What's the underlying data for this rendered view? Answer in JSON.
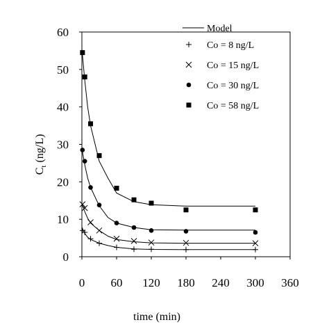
{
  "chart_data": {
    "type": "scatter",
    "xlabel": "time (min)",
    "ylabel_main": "C",
    "ylabel_sub": "t",
    "ylabel_unit": " (ng/L)",
    "xlim": [
      0,
      360
    ],
    "ylim": [
      0,
      60
    ],
    "x_ticks": [
      0,
      60,
      120,
      180,
      240,
      300,
      360
    ],
    "y_ticks": [
      0,
      10,
      20,
      30,
      40,
      50,
      60
    ],
    "grid": false,
    "legend_position": "top-right",
    "model_label": "Model",
    "series": [
      {
        "name": "Co = 8 ng/L",
        "marker": "plus",
        "points": [
          [
            1,
            7.0
          ],
          [
            5,
            6.5
          ],
          [
            15,
            4.8
          ],
          [
            30,
            3.6
          ],
          [
            60,
            2.5
          ],
          [
            90,
            2.0
          ],
          [
            120,
            2.0
          ],
          [
            180,
            1.9
          ],
          [
            300,
            1.9
          ]
        ],
        "model": [
          [
            0,
            7.8
          ],
          [
            5,
            6.2
          ],
          [
            10,
            5.2
          ],
          [
            15,
            4.6
          ],
          [
            30,
            3.6
          ],
          [
            45,
            3.0
          ],
          [
            60,
            2.5
          ],
          [
            90,
            2.1
          ],
          [
            120,
            1.95
          ],
          [
            180,
            1.9
          ],
          [
            300,
            1.9
          ]
        ]
      },
      {
        "name": "Co = 15 ng/L",
        "marker": "x",
        "points": [
          [
            1,
            14.0
          ],
          [
            5,
            13.0
          ],
          [
            15,
            9.2
          ],
          [
            30,
            7.0
          ],
          [
            60,
            4.8
          ],
          [
            90,
            4.2
          ],
          [
            120,
            3.8
          ],
          [
            180,
            3.7
          ],
          [
            300,
            3.6
          ]
        ],
        "model": [
          [
            0,
            14.2
          ],
          [
            5,
            12.0
          ],
          [
            10,
            10.3
          ],
          [
            15,
            9.0
          ],
          [
            30,
            7.0
          ],
          [
            45,
            5.5
          ],
          [
            60,
            4.6
          ],
          [
            90,
            4.0
          ],
          [
            120,
            3.7
          ],
          [
            180,
            3.6
          ],
          [
            300,
            3.6
          ]
        ]
      },
      {
        "name": "Co = 30 ng/L",
        "marker": "circle",
        "points": [
          [
            1,
            28.5
          ],
          [
            5,
            25.5
          ],
          [
            15,
            18.5
          ],
          [
            30,
            13.8
          ],
          [
            60,
            9.0
          ],
          [
            90,
            7.8
          ],
          [
            120,
            7.0
          ],
          [
            180,
            6.8
          ],
          [
            300,
            6.5
          ]
        ],
        "model": [
          [
            0,
            28.8
          ],
          [
            5,
            24.5
          ],
          [
            10,
            21.0
          ],
          [
            15,
            18.5
          ],
          [
            30,
            13.6
          ],
          [
            45,
            10.5
          ],
          [
            60,
            9.0
          ],
          [
            90,
            7.8
          ],
          [
            120,
            7.2
          ],
          [
            180,
            7.1
          ],
          [
            300,
            7.1
          ]
        ]
      },
      {
        "name": "Co = 58 ng/L",
        "marker": "square",
        "points": [
          [
            1,
            54.5
          ],
          [
            5,
            48.0
          ],
          [
            15,
            35.5
          ],
          [
            30,
            27.0
          ],
          [
            60,
            18.3
          ],
          [
            90,
            15.2
          ],
          [
            120,
            14.3
          ],
          [
            180,
            12.5
          ],
          [
            300,
            12.5
          ]
        ],
        "model": [
          [
            0,
            55.5
          ],
          [
            5,
            47.0
          ],
          [
            10,
            40.0
          ],
          [
            15,
            35.0
          ],
          [
            30,
            25.5
          ],
          [
            45,
            21.0
          ],
          [
            60,
            17.0
          ],
          [
            90,
            14.7
          ],
          [
            120,
            13.9
          ],
          [
            180,
            13.5
          ],
          [
            300,
            13.5
          ]
        ]
      }
    ]
  }
}
